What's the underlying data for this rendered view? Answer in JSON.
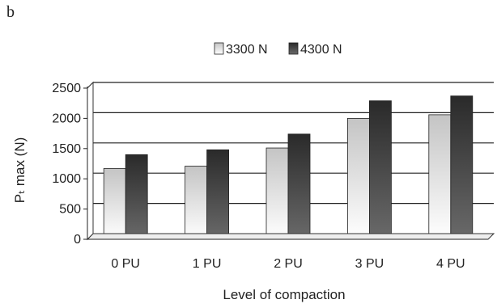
{
  "panel_label": "b",
  "chart_data": {
    "type": "bar",
    "title": "",
    "xlabel": "Level of compaction",
    "ylabel": "Pₜ max  (N)",
    "categories": [
      "0 PU",
      "1 PU",
      "2 PU",
      "3 PU",
      "4 PU"
    ],
    "ylim": [
      0,
      2500
    ],
    "yticks": [
      0,
      500,
      1000,
      1500,
      2000,
      2500
    ],
    "grid": true,
    "legend_position": "top",
    "series": [
      {
        "name": "3300 N",
        "values": [
          1170,
          1210,
          1510,
          2000,
          2060
        ],
        "color": "#e6e6e6"
      },
      {
        "name": "4300 N",
        "values": [
          1400,
          1480,
          1740,
          2290,
          2370
        ],
        "color": "#3c3c3c"
      }
    ]
  }
}
